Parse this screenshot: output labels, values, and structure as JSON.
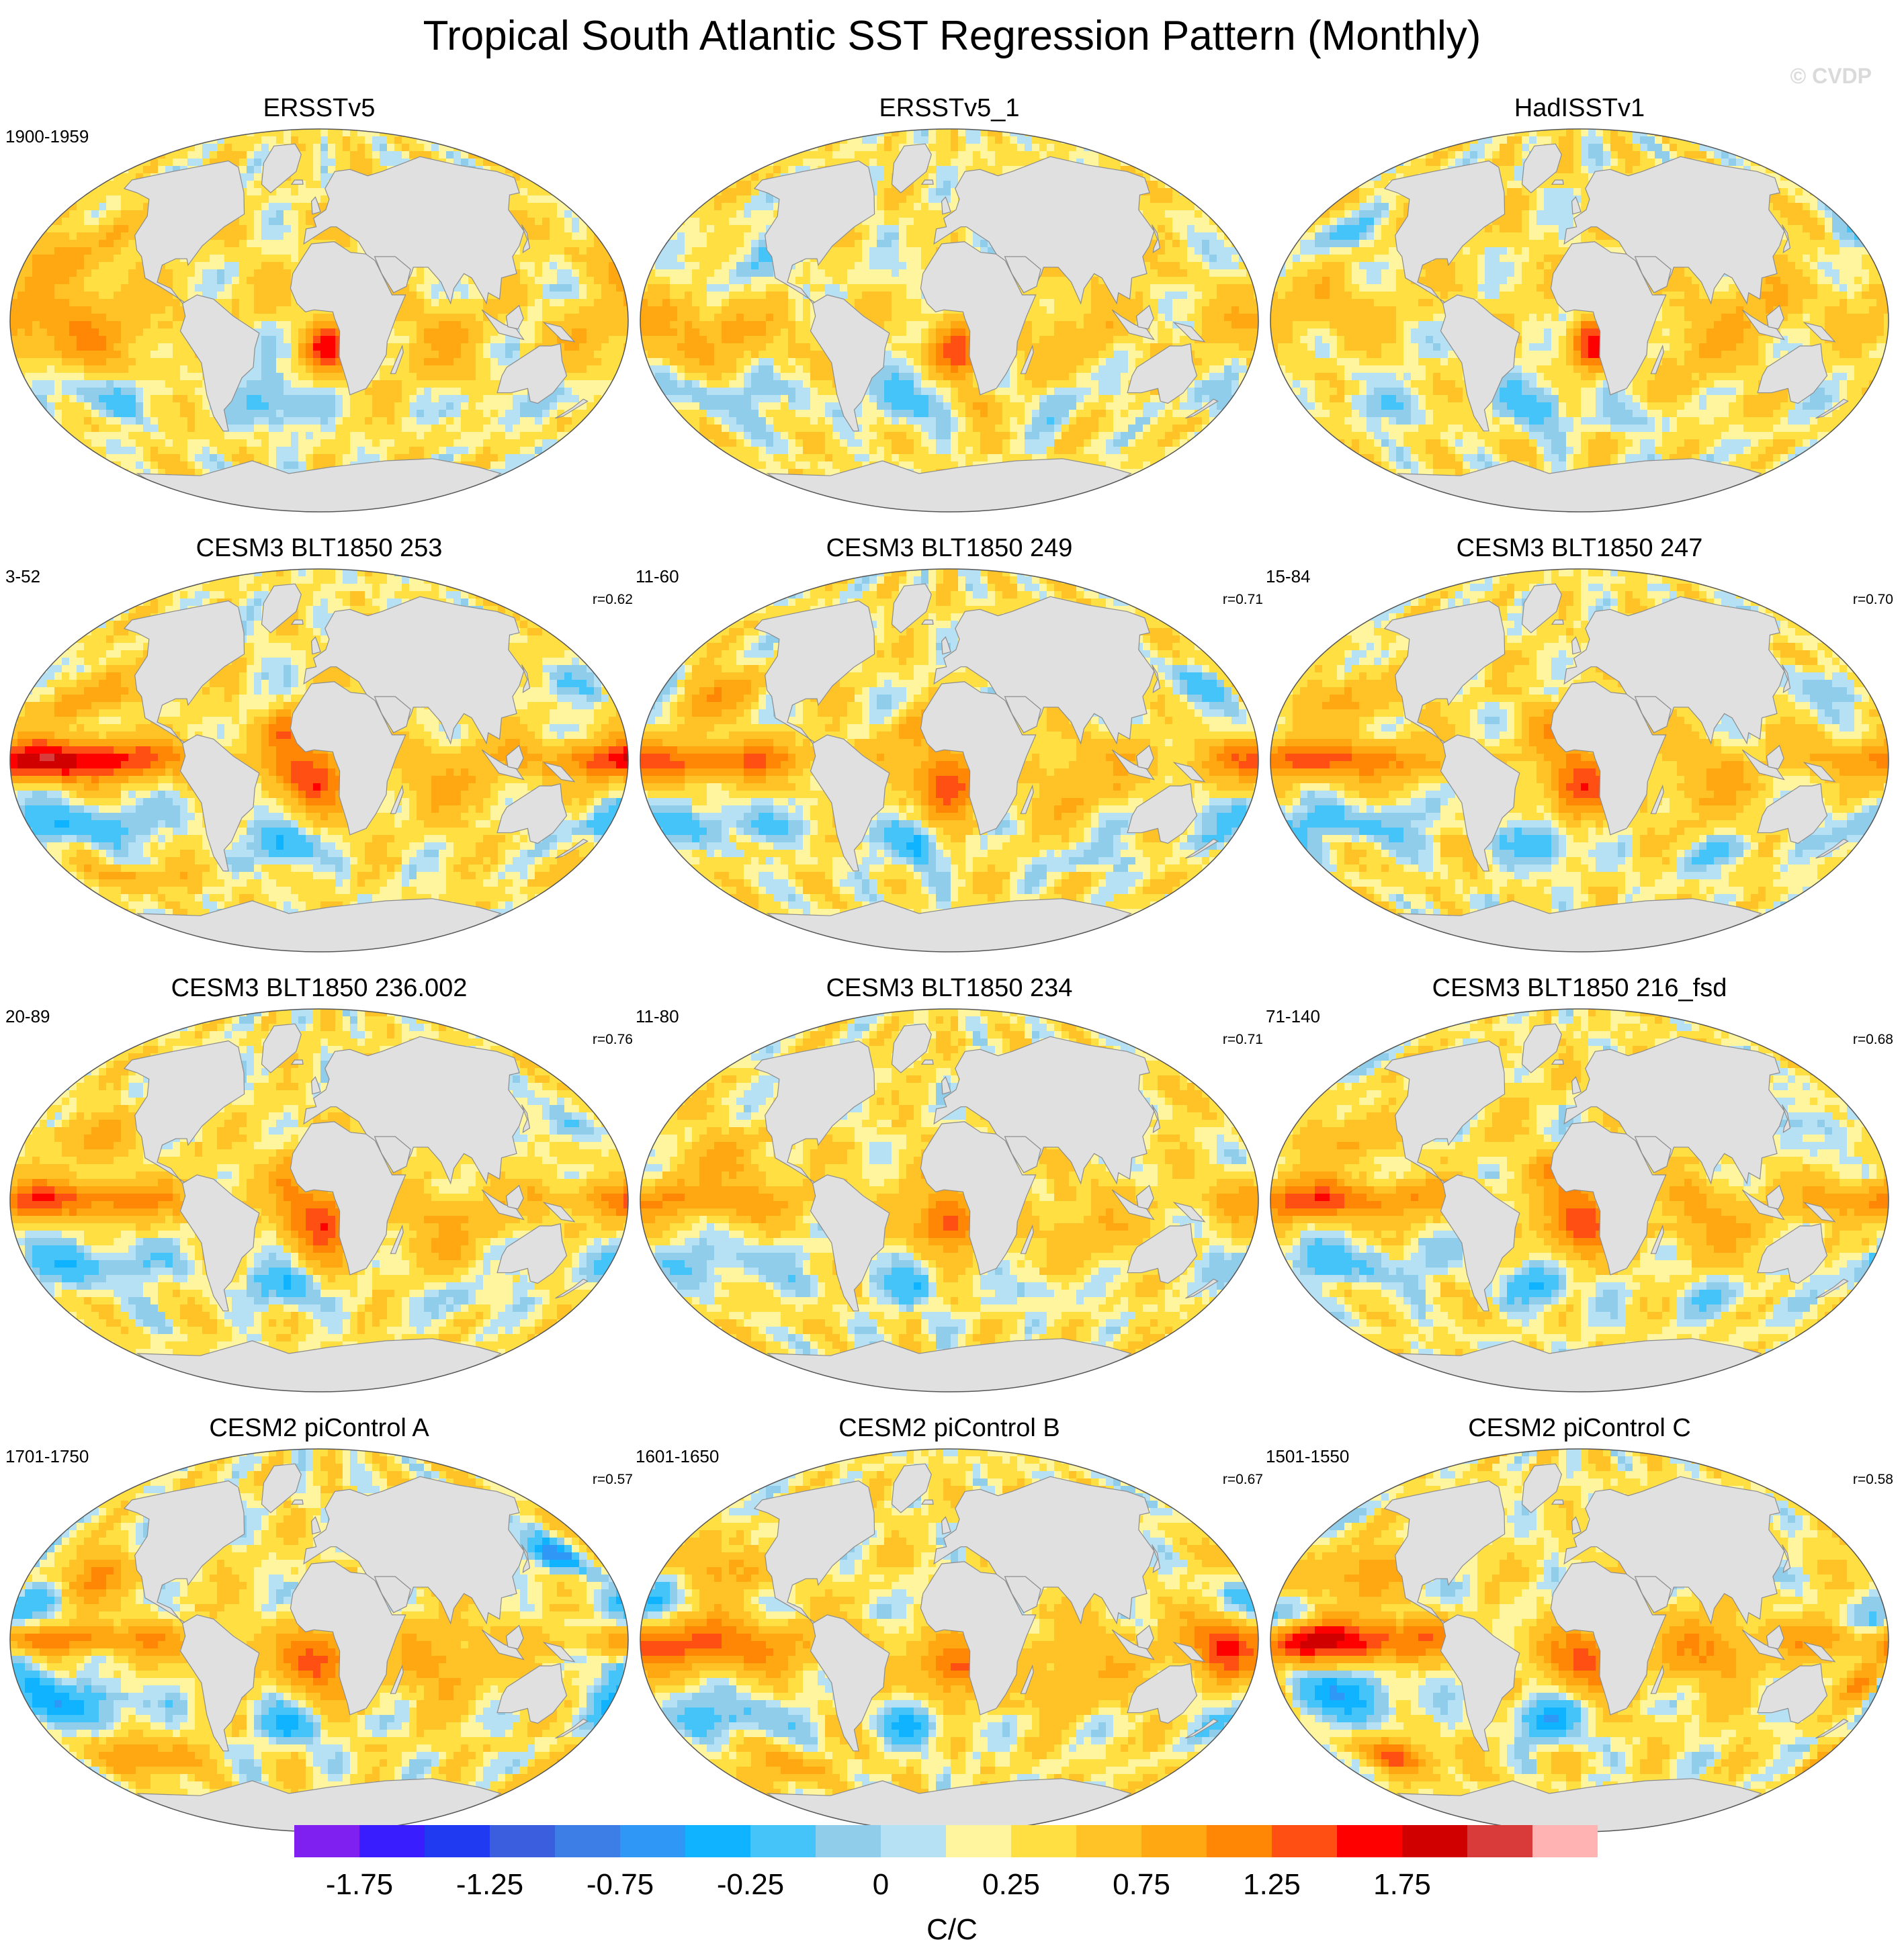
{
  "title": "Tropical South Atlantic SST Regression Pattern (Monthly)",
  "watermark": "© CVDP",
  "panels": [
    {
      "title": "ERSSTv5",
      "years": "1900-1959",
      "r": "",
      "pattern": "obs1"
    },
    {
      "title": "ERSSTv5_1",
      "years": "",
      "r": "",
      "pattern": "obs2"
    },
    {
      "title": "HadISSTv1",
      "years": "",
      "r": "",
      "pattern": "obs3"
    },
    {
      "title": "CESM3 BLT1850 253",
      "years": "3-52",
      "r": "r=0.62",
      "pattern": "model_strong"
    },
    {
      "title": "CESM3 BLT1850 249",
      "years": "11-60",
      "r": "r=0.71",
      "pattern": "model"
    },
    {
      "title": "CESM3 BLT1850 247",
      "years": "15-84",
      "r": "r=0.70",
      "pattern": "model"
    },
    {
      "title": "CESM3 BLT1850 236.002",
      "years": "20-89",
      "r": "r=0.76",
      "pattern": "model"
    },
    {
      "title": "CESM3 BLT1850 234",
      "years": "11-80",
      "r": "r=0.71",
      "pattern": "model_weak"
    },
    {
      "title": "CESM3 BLT1850 216_fsd",
      "years": "71-140",
      "r": "r=0.68",
      "pattern": "model"
    },
    {
      "title": "CESM2 piControl A",
      "years": "1701-1750",
      "r": "r=0.57",
      "pattern": "cesm2a"
    },
    {
      "title": "CESM2 piControl B",
      "years": "1601-1650",
      "r": "r=0.67",
      "pattern": "cesm2b"
    },
    {
      "title": "CESM2 piControl C",
      "years": "1501-1550",
      "r": "r=0.58",
      "pattern": "cesm2c"
    }
  ],
  "colorbar": {
    "colors": [
      "#7f1ff0",
      "#3a1dff",
      "#1f3af0",
      "#3b5ede",
      "#3d7ee6",
      "#2f97f5",
      "#10b3ff",
      "#45c4fa",
      "#8fcdeb",
      "#b6e0f4",
      "#fff59e",
      "#ffdf42",
      "#ffc327",
      "#ffa812",
      "#ff8705",
      "#ff4f13",
      "#ff0000",
      "#d10000",
      "#d93a3a",
      "#ffb3b3"
    ],
    "tick_labels": [
      "-1.75",
      "-1.25",
      "-0.75",
      "-0.25",
      "0",
      "0.25",
      "0.75",
      "1.25",
      "1.75"
    ],
    "units": "C/C"
  },
  "colors": {
    "land": "#e0e0e0",
    "coast": "#8c8c8c",
    "neutral_ocean": "#fff59e"
  }
}
